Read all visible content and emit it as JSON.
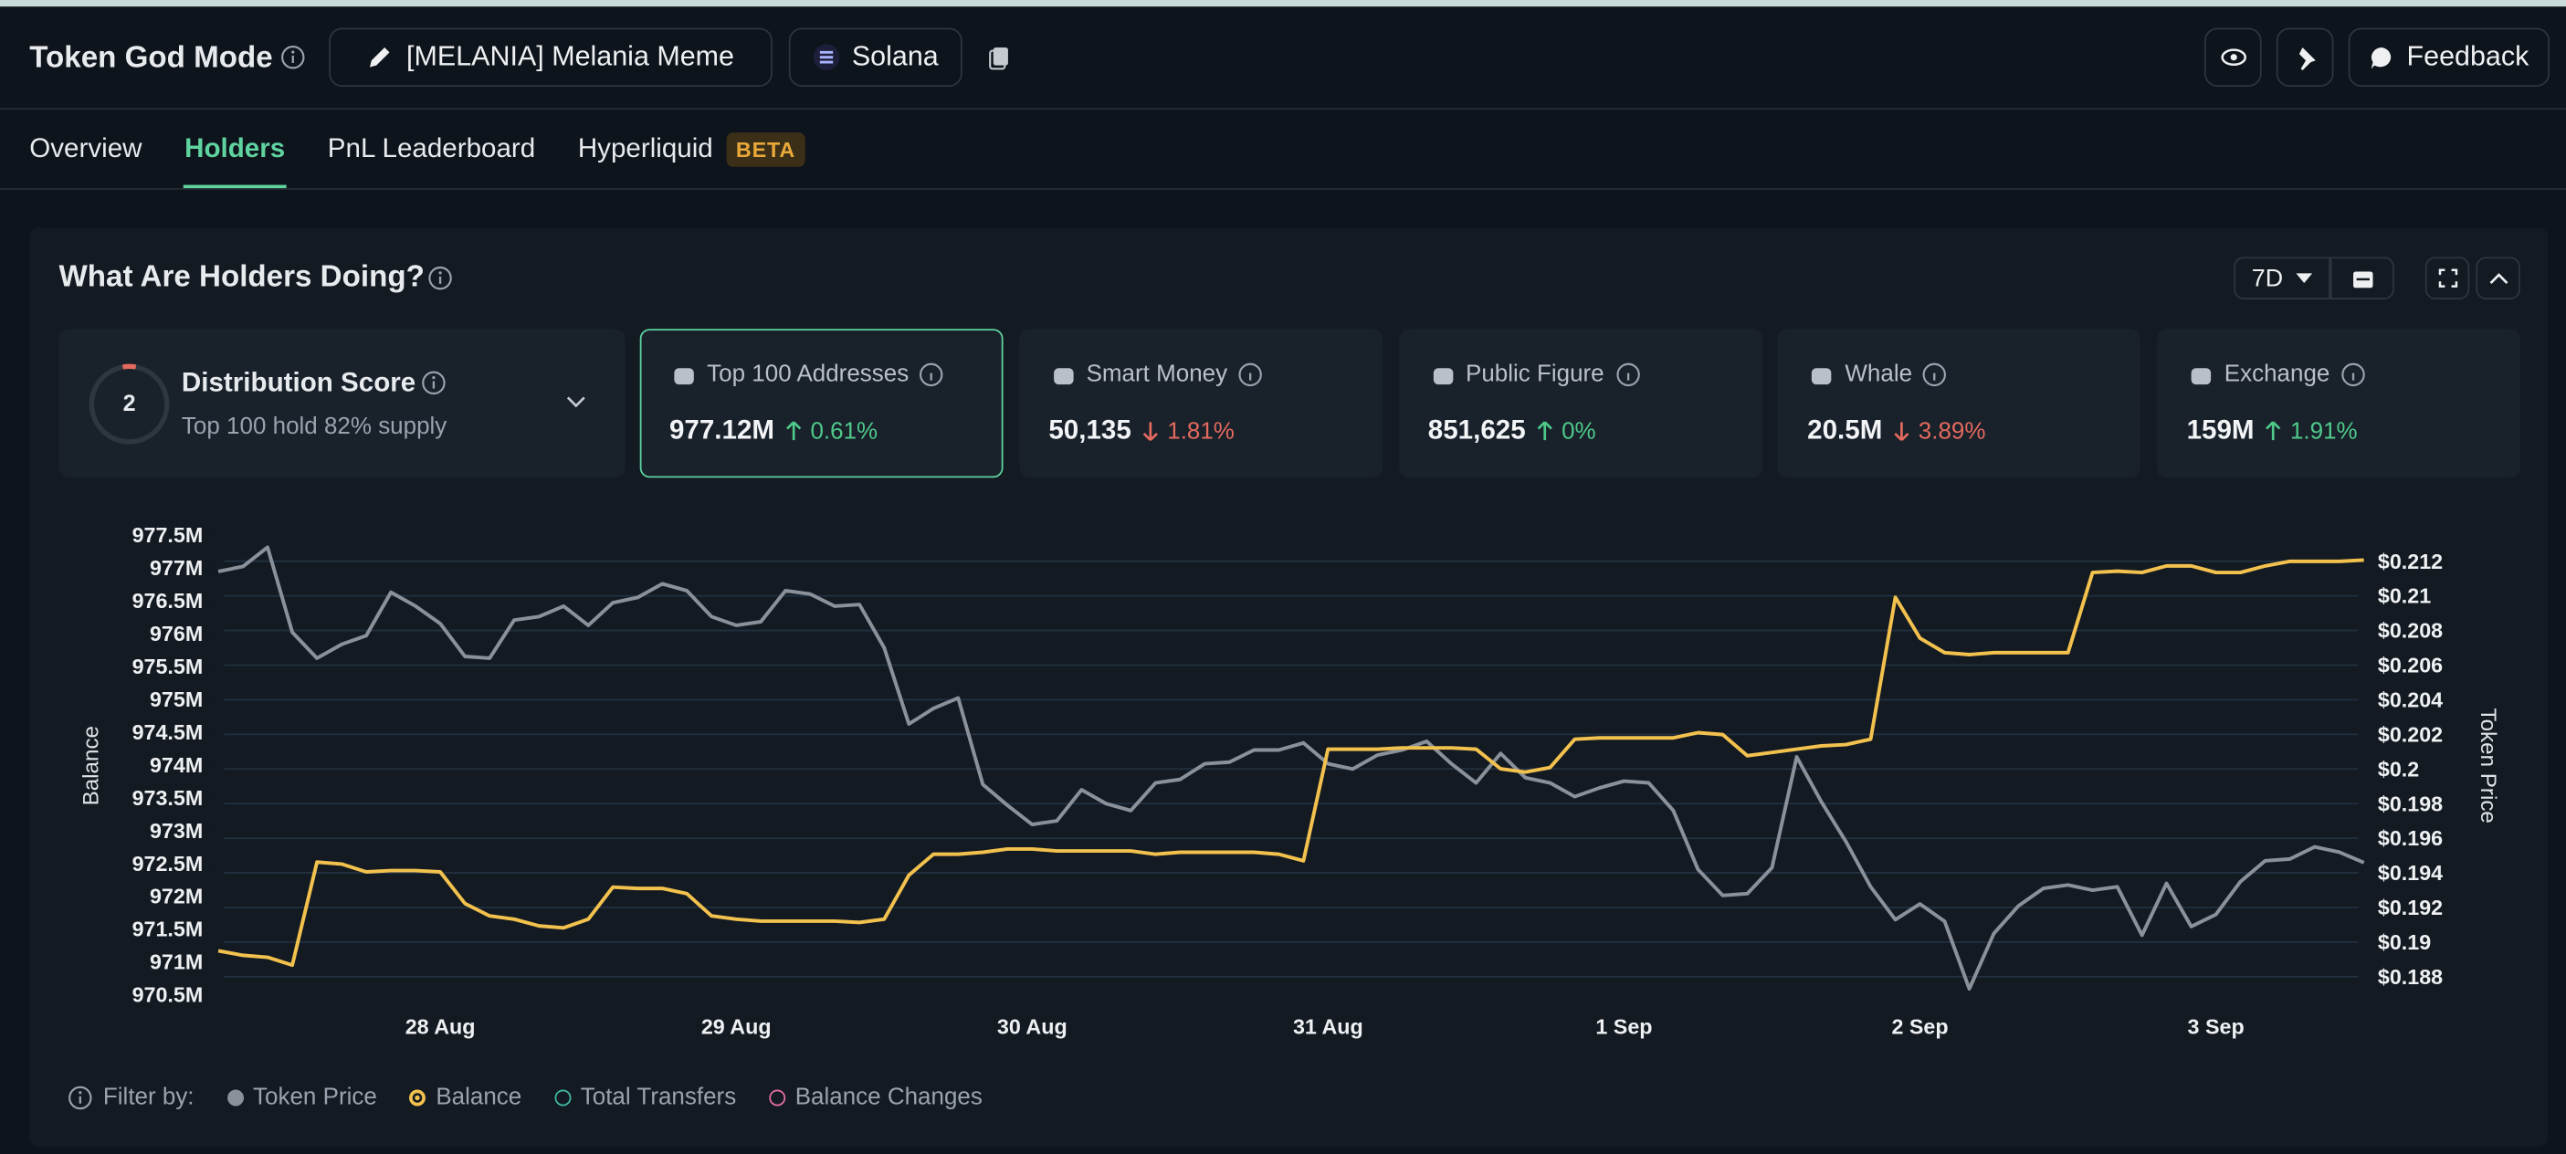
{
  "header": {
    "title": "Token God Mode",
    "token": "[MELANIA] Melania Meme",
    "chain": "Solana",
    "feedback": "Feedback"
  },
  "tabs": {
    "items": [
      "Overview",
      "Holders",
      "PnL Leaderboard",
      "Hyperliquid"
    ],
    "active": 1,
    "badge": "BETA"
  },
  "panel": {
    "title": "What Are Holders Doing?",
    "period": "7D",
    "distribution": {
      "score": "2",
      "title": "Distribution Score",
      "subtitle": "Top 100 hold 82% supply"
    },
    "selected_card": 0,
    "cards": [
      {
        "label": "Top 100 Addresses",
        "value": "977.12M",
        "change": "0.61%",
        "direction": "up"
      },
      {
        "label": "Smart Money",
        "value": "50,135",
        "change": "1.81%",
        "direction": "down"
      },
      {
        "label": "Public Figure",
        "value": "851,625",
        "change": "0%",
        "direction": "up"
      },
      {
        "label": "Whale",
        "value": "20.5M",
        "change": "3.89%",
        "direction": "down"
      },
      {
        "label": "Exchange",
        "value": "159M",
        "change": "1.91%",
        "direction": "up"
      }
    ],
    "filter_label": "Filter by:",
    "extra_filters": [
      {
        "label": "Total Transfers",
        "color": "#3fb8a0"
      },
      {
        "label": "Balance Changes",
        "color": "#e26fa0"
      }
    ]
  },
  "chart_data": {
    "type": "line",
    "y_label": "Balance",
    "y2_label": "Token Price",
    "grid": true,
    "categories": [
      null,
      null,
      null,
      null,
      null,
      null,
      null,
      null,
      null,
      "28 Aug",
      null,
      null,
      null,
      null,
      null,
      null,
      null,
      null,
      null,
      null,
      null,
      "29 Aug",
      null,
      null,
      null,
      null,
      null,
      null,
      null,
      null,
      null,
      null,
      null,
      "30 Aug",
      null,
      null,
      null,
      null,
      null,
      null,
      null,
      null,
      null,
      null,
      null,
      "31 Aug",
      null,
      null,
      null,
      null,
      null,
      null,
      null,
      null,
      null,
      null,
      null,
      "1 Sep",
      null,
      null,
      null,
      null,
      null,
      null,
      null,
      null,
      null,
      null,
      null,
      "2 Sep",
      null,
      null,
      null,
      null,
      null,
      null,
      null,
      null,
      null,
      null,
      null,
      "3 Sep",
      null,
      null,
      null,
      null,
      null,
      null
    ],
    "ylim": [
      970500000,
      977500000
    ],
    "yticks": [
      {
        "value": 970500000,
        "label": "970.5M"
      },
      {
        "value": 971000000,
        "label": "971M"
      },
      {
        "value": 971500000,
        "label": "971.5M"
      },
      {
        "value": 972000000,
        "label": "972M"
      },
      {
        "value": 972500000,
        "label": "972.5M"
      },
      {
        "value": 973000000,
        "label": "973M"
      },
      {
        "value": 973500000,
        "label": "973.5M"
      },
      {
        "value": 974000000,
        "label": "974M"
      },
      {
        "value": 974500000,
        "label": "974.5M"
      },
      {
        "value": 975000000,
        "label": "975M"
      },
      {
        "value": 975500000,
        "label": "975.5M"
      },
      {
        "value": 976000000,
        "label": "976M"
      },
      {
        "value": 976500000,
        "label": "976.5M"
      },
      {
        "value": 977000000,
        "label": "977M"
      },
      {
        "value": 977500000,
        "label": "977.5M"
      }
    ],
    "y2lim": [
      0.188,
      0.212
    ],
    "y2ticks": [
      {
        "value": 0.188,
        "label": "$0.188"
      },
      {
        "value": 0.19,
        "label": "$0.19"
      },
      {
        "value": 0.192,
        "label": "$0.192"
      },
      {
        "value": 0.194,
        "label": "$0.194"
      },
      {
        "value": 0.196,
        "label": "$0.196"
      },
      {
        "value": 0.198,
        "label": "$0.198"
      },
      {
        "value": 0.2,
        "label": "$0.2"
      },
      {
        "value": 0.202,
        "label": "$0.202"
      },
      {
        "value": 0.204,
        "label": "$0.204"
      },
      {
        "value": 0.206,
        "label": "$0.206"
      },
      {
        "value": 0.208,
        "label": "$0.208"
      },
      {
        "value": 0.21,
        "label": "$0.21"
      },
      {
        "value": 0.212,
        "label": "$0.212"
      }
    ],
    "series": [
      {
        "name": "Token Price",
        "color": "#8a919a",
        "axis": "y2",
        "values": [
          0.2114,
          0.2117,
          0.2128,
          0.2079,
          0.2064,
          0.2072,
          0.2077,
          0.2102,
          0.2094,
          0.2084,
          0.2065,
          0.2064,
          0.2086,
          0.2088,
          0.2094,
          0.2083,
          0.2096,
          0.2099,
          0.2107,
          0.2103,
          0.2088,
          0.2083,
          0.2085,
          0.2103,
          0.2101,
          0.2094,
          0.2095,
          0.207,
          0.2026,
          0.2035,
          0.2041,
          0.1991,
          0.1979,
          0.1968,
          0.197,
          0.1988,
          0.198,
          0.1976,
          0.1992,
          0.1994,
          0.2003,
          0.2004,
          0.2011,
          0.2011,
          0.2015,
          0.2003,
          0.2,
          0.2008,
          0.2011,
          0.2016,
          0.2003,
          0.1992,
          0.2009,
          0.1995,
          0.1992,
          0.1984,
          0.1989,
          0.1993,
          0.1992,
          0.1976,
          0.1942,
          0.1927,
          0.1928,
          0.1943,
          0.2007,
          0.1981,
          0.1958,
          0.1932,
          0.1913,
          0.1922,
          0.1912,
          0.1873,
          0.1905,
          0.1921,
          0.1931,
          0.1933,
          0.193,
          0.1932,
          0.1904,
          0.1934,
          0.1909,
          0.1916,
          0.1935,
          0.1947,
          0.1948,
          0.1955,
          0.1952,
          0.1946
        ]
      },
      {
        "name": "Balance",
        "color": "#f2c14e",
        "values": [
          971170000,
          971100000,
          971070000,
          970950000,
          972520000,
          972490000,
          972370000,
          972390000,
          972390000,
          972370000,
          971890000,
          971700000,
          971650000,
          971550000,
          971520000,
          971650000,
          972140000,
          972120000,
          972120000,
          972040000,
          971700000,
          971650000,
          971620000,
          971620000,
          971620000,
          971620000,
          971600000,
          971650000,
          972320000,
          972640000,
          972640000,
          972670000,
          972720000,
          972720000,
          972690000,
          972690000,
          972690000,
          972690000,
          972640000,
          972670000,
          972670000,
          972670000,
          972670000,
          972640000,
          972540000,
          974240000,
          974240000,
          974240000,
          974260000,
          974260000,
          974260000,
          974240000,
          973940000,
          973890000,
          973960000,
          974390000,
          974410000,
          974410000,
          974410000,
          974410000,
          974490000,
          974460000,
          974140000,
          974190000,
          974240000,
          974290000,
          974310000,
          974390000,
          976550000,
          975930000,
          975710000,
          975680000,
          975710000,
          975710000,
          975710000,
          975710000,
          976930000,
          976950000,
          976930000,
          977030000,
          977030000,
          976930000,
          976930000,
          977030000,
          977100000,
          977100000,
          977100000,
          977120000
        ]
      }
    ]
  }
}
